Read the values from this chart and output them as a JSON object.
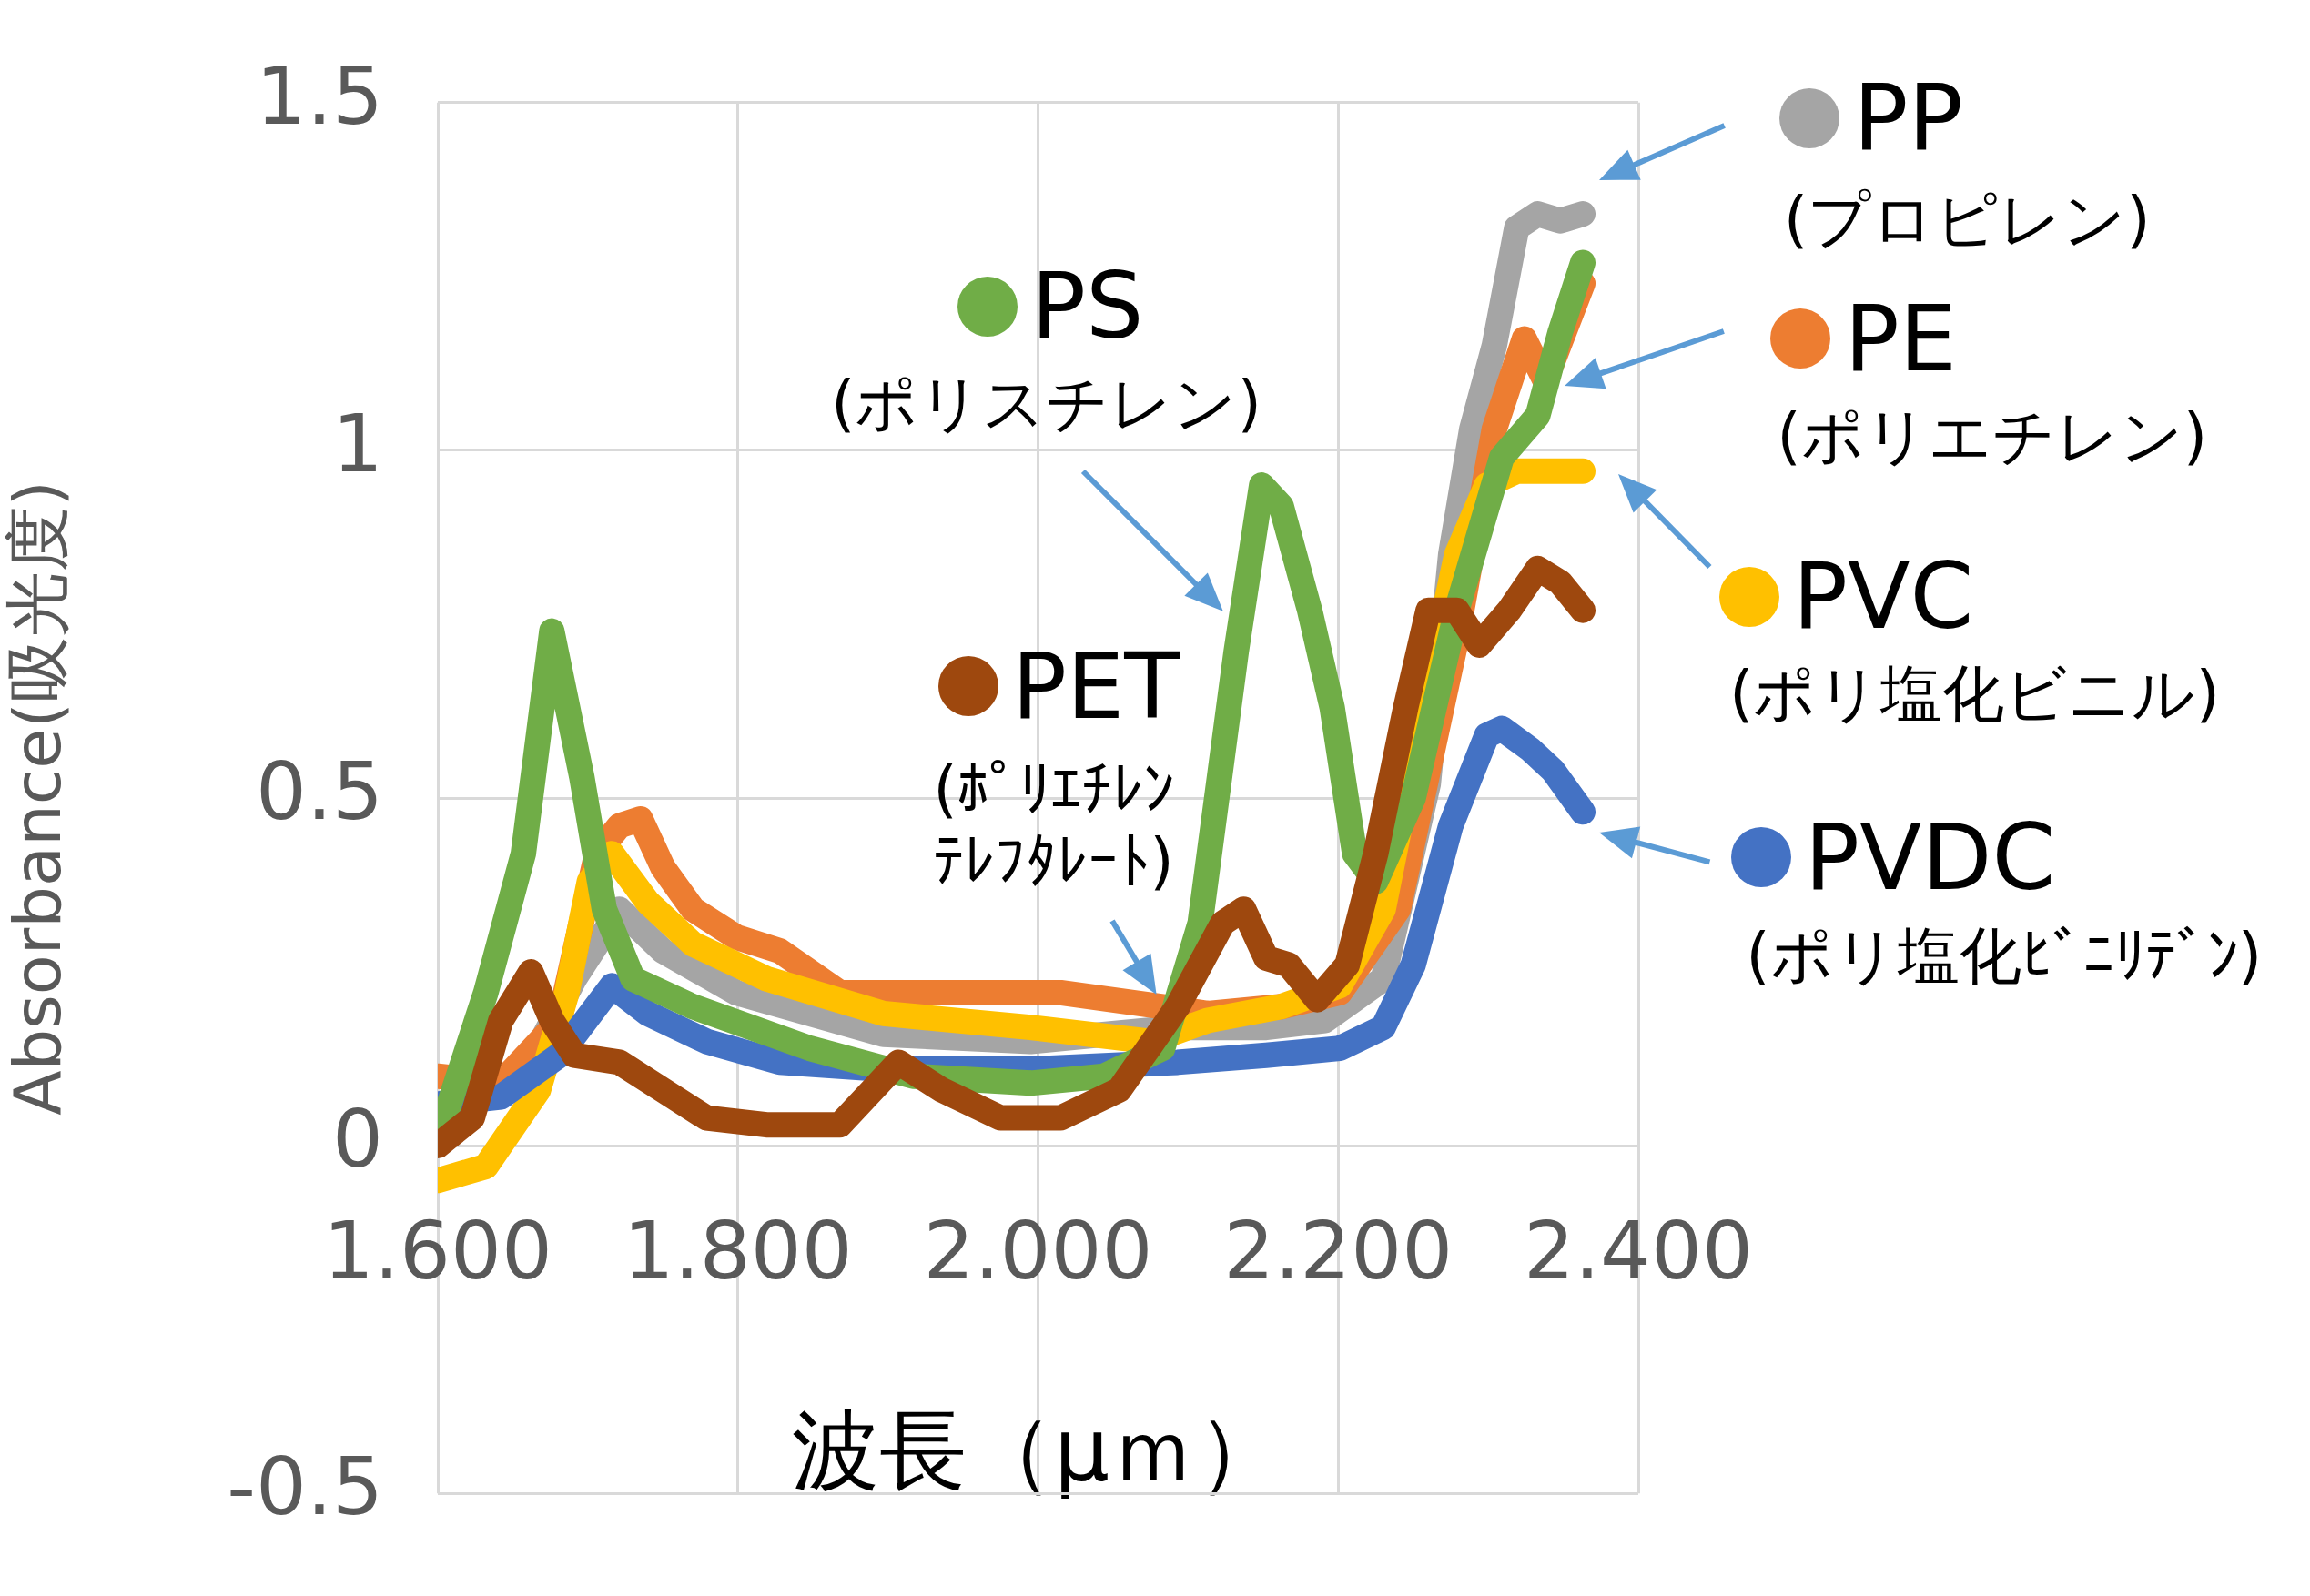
{
  "chart_data": {
    "type": "line",
    "xlabel": "波長（μｍ）",
    "ylabel": "Absorbance(吸光度)",
    "xlim": [
      1.6,
      2.4
    ],
    "xticks": [
      {
        "value": 1.6,
        "label": "1.600"
      },
      {
        "value": 1.8,
        "label": "1.800"
      },
      {
        "value": 2.0,
        "label": "2.000"
      },
      {
        "value": 2.2,
        "label": "2.200"
      },
      {
        "value": 2.4,
        "label": "2.400"
      }
    ],
    "ylim": [
      -0.5,
      1.5
    ],
    "yticks": [
      -0.5,
      0,
      0.5,
      1,
      1.5
    ],
    "grid": true,
    "series": [
      {
        "name": "PET",
        "color": "#9e480e",
        "x": [
          1.6,
          1.623,
          1.642,
          1.662,
          1.676,
          1.691,
          1.721,
          1.75,
          1.779,
          1.819,
          1.868,
          1.907,
          1.936,
          1.975,
          2.015,
          2.054,
          2.093,
          2.123,
          2.137,
          2.152,
          2.167,
          2.186,
          2.206,
          2.225,
          2.245,
          2.26,
          2.279,
          2.294,
          2.314,
          2.333,
          2.348,
          2.363
        ],
        "values": [
          0,
          0.04,
          0.18,
          0.25,
          0.18,
          0.13,
          0.12,
          0.08,
          0.04,
          0.03,
          0.03,
          0.12,
          0.08,
          0.04,
          0.04,
          0.08,
          0.2,
          0.32,
          0.34,
          0.27,
          0.26,
          0.21,
          0.26,
          0.42,
          0.63,
          0.77,
          0.77,
          0.72,
          0.77,
          0.83,
          0.81,
          0.77
        ]
      },
      {
        "name": "PS",
        "color": "#70ad47",
        "x": [
          1.6,
          1.632,
          1.657,
          1.676,
          1.696,
          1.711,
          1.73,
          1.77,
          1.848,
          1.917,
          1.995,
          2.044,
          2.083,
          2.108,
          2.132,
          2.149,
          2.162,
          2.181,
          2.196,
          2.211,
          2.225,
          2.25,
          2.279,
          2.309,
          2.333,
          2.348,
          2.363
        ],
        "values": [
          0.01,
          0.22,
          0.42,
          0.74,
          0.53,
          0.34,
          0.24,
          0.2,
          0.14,
          0.1,
          0.09,
          0.1,
          0.14,
          0.32,
          0.71,
          0.95,
          0.92,
          0.77,
          0.63,
          0.42,
          0.38,
          0.5,
          0.77,
          0.99,
          1.05,
          1.17,
          1.27
        ]
      },
      {
        "name": "PVDC",
        "color": "#4472c4",
        "x": [
          1.6,
          1.642,
          1.681,
          1.716,
          1.74,
          1.779,
          1.828,
          1.897,
          1.995,
          2.093,
          2.152,
          2.201,
          2.23,
          2.25,
          2.275,
          2.299,
          2.309,
          2.328,
          2.343,
          2.363
        ],
        "values": [
          0.06,
          0.07,
          0.13,
          0.23,
          0.19,
          0.15,
          0.12,
          0.11,
          0.11,
          0.12,
          0.13,
          0.14,
          0.17,
          0.26,
          0.46,
          0.59,
          0.6,
          0.57,
          0.54,
          0.48
        ]
      },
      {
        "name": "PVC",
        "color": "#ffc000",
        "x": [
          1.6,
          1.632,
          1.667,
          1.686,
          1.701,
          1.716,
          1.74,
          1.77,
          1.819,
          1.897,
          1.995,
          2.074,
          2.113,
          2.162,
          2.201,
          2.23,
          2.255,
          2.279,
          2.299,
          2.319,
          2.338,
          2.363
        ],
        "values": [
          -0.05,
          -0.03,
          0.08,
          0.22,
          0.38,
          0.42,
          0.35,
          0.29,
          0.24,
          0.19,
          0.17,
          0.15,
          0.18,
          0.2,
          0.23,
          0.34,
          0.61,
          0.85,
          0.95,
          0.97,
          0.97,
          0.97
        ]
      },
      {
        "name": "PE",
        "color": "#ed7d31",
        "x": [
          1.6,
          1.642,
          1.681,
          1.706,
          1.721,
          1.735,
          1.75,
          1.77,
          1.799,
          1.828,
          1.868,
          1.946,
          2.015,
          2.083,
          2.113,
          2.162,
          2.201,
          2.24,
          2.279,
          2.304,
          2.324,
          2.338,
          2.363
        ],
        "values": [
          0.1,
          0.09,
          0.18,
          0.42,
          0.46,
          0.47,
          0.4,
          0.34,
          0.3,
          0.28,
          0.22,
          0.22,
          0.22,
          0.2,
          0.19,
          0.2,
          0.22,
          0.34,
          0.73,
          1.03,
          1.16,
          1.1,
          1.24
        ]
      },
      {
        "name": "PP",
        "color": "#a5a5a5",
        "x": [
          1.652,
          1.691,
          1.721,
          1.75,
          1.799,
          1.897,
          1.995,
          2.093,
          2.152,
          2.191,
          2.23,
          2.26,
          2.275,
          2.289,
          2.304,
          2.319,
          2.333,
          2.348,
          2.363
        ],
        "values": [
          0.08,
          0.24,
          0.34,
          0.28,
          0.22,
          0.16,
          0.15,
          0.17,
          0.17,
          0.18,
          0.24,
          0.52,
          0.85,
          1.03,
          1.15,
          1.32,
          1.34,
          1.33,
          1.34
        ]
      }
    ],
    "legend": "right",
    "annotations": [
      "(ﾎﾟﾘｴﾁﾚﾝﾃﾚﾌﾀﾚｰﾄ)",
      "(ポリスチレン)",
      "(ポリ塩化ﾋﾞﾆﾘﾃﾞﾝ)",
      "(ポリ塩化ビニル)",
      "(ポリエチレン)",
      "(プロピレン)"
    ]
  }
}
